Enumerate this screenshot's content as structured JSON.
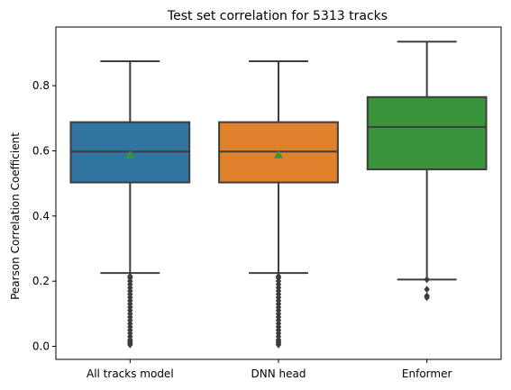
{
  "chart_data": {
    "type": "box",
    "title": "Test set correlation for 5313 tracks",
    "xlabel": "",
    "ylabel": "Pearson Correlation Coefficient",
    "ylim": [
      -0.04,
      0.98
    ],
    "yticks": [
      0.0,
      0.2,
      0.4,
      0.6,
      0.8
    ],
    "ytick_labels": [
      "0.0",
      "0.2",
      "0.4",
      "0.6",
      "0.8"
    ],
    "grid": false,
    "categories": [
      "All tracks model",
      "DNN head",
      "Enformer"
    ],
    "boxes": [
      {
        "category": "All tracks model",
        "color": "#3274a1",
        "whisker_low": 0.225,
        "q1": 0.503,
        "median": 0.598,
        "q3": 0.688,
        "whisker_high": 0.875,
        "mean": 0.588,
        "outliers": [
          0.005,
          0.01,
          0.015,
          0.02,
          0.03,
          0.04,
          0.05,
          0.06,
          0.07,
          0.08,
          0.09,
          0.1,
          0.11,
          0.12,
          0.13,
          0.14,
          0.15,
          0.16,
          0.17,
          0.18,
          0.19,
          0.2,
          0.21,
          0.215
        ]
      },
      {
        "category": "DNN head",
        "color": "#e1812c",
        "whisker_low": 0.225,
        "q1": 0.503,
        "median": 0.598,
        "q3": 0.688,
        "whisker_high": 0.875,
        "mean": 0.588,
        "outliers": [
          0.005,
          0.01,
          0.015,
          0.02,
          0.03,
          0.04,
          0.05,
          0.06,
          0.07,
          0.08,
          0.09,
          0.1,
          0.11,
          0.12,
          0.13,
          0.14,
          0.15,
          0.16,
          0.17,
          0.18,
          0.19,
          0.2,
          0.21,
          0.215
        ]
      },
      {
        "category": "Enformer",
        "color": "#3a923a",
        "whisker_low": 0.205,
        "q1": 0.543,
        "median": 0.673,
        "q3": 0.765,
        "whisker_high": 0.935,
        "mean": 0.648,
        "outliers": [
          0.15,
          0.155,
          0.175,
          0.205
        ]
      }
    ],
    "mean_marker_color": "#3a923a",
    "line_color": "#3d3d3d"
  }
}
